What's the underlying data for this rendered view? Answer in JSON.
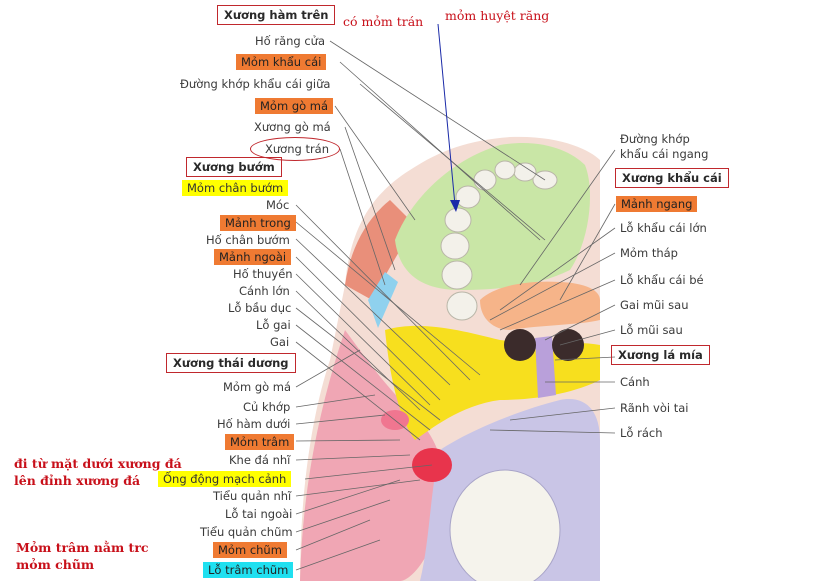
{
  "header": {
    "title": "Xương hàm trên",
    "note_co_mom_tran": "có mỏm trán",
    "note_mom_huyet_rang": "mỏm huyệt răng"
  },
  "left_labels": {
    "ho_rang_cua": "Hố răng cửa",
    "mom_khau_cai": "Mỏm khẩu cái",
    "duong_khop_giua": "Đường khớp khẩu cái giữa",
    "mom_go_ma": "Mỏm gò má",
    "xuong_go_ma": "Xương gò má",
    "xuong_tran": "Xương trán",
    "xuong_buom": "Xương bướm",
    "mom_chan_buom": "Mỏm chân bướm",
    "moc": "Móc",
    "manh_trong": "Mảnh trong",
    "ho_chan_buom": "Hố chân bướm",
    "manh_ngoai": "Mảnh ngoài",
    "ho_thuyen": "Hố thuyền",
    "canh_lon": "Cánh lớn",
    "lo_bau_duc": "Lỗ bầu dục",
    "lo_gai": "Lỗ gai",
    "gai": "Gai",
    "xuong_thai_duong": "Xương thái dương",
    "mom_go_ma_2": "Mỏm gò má",
    "cu_khop": "Củ khớp",
    "ho_ham_duoi": "Hố hàm dưới",
    "mom_tram": "Mỏm trâm",
    "khe_da_nhi": "Khe đá nhĩ",
    "ong_dong_mach_canh": "Ống động mạch cảnh",
    "tieu_quan_nhi": "Tiểu quản nhĩ",
    "lo_tai_ngoai": "Lỗ tai ngoài",
    "tieu_quan_chum": "Tiểu quản chũm",
    "mom_chum": "Mỏm chũm",
    "lo_tram_chum": "Lỗ trâm chũm"
  },
  "right_labels": {
    "duong_khop_ngang_1": "Đường khớp",
    "duong_khop_ngang_2": "khẩu cái ngang",
    "xuong_khau_cai": "Xương khẩu cái",
    "manh_ngang": "Mảnh ngang",
    "lo_khau_cai_lon": "Lỗ khẩu cái lớn",
    "mom_thap": "Mỏm tháp",
    "lo_khau_cai_be": "Lỗ khẩu cái bé",
    "gai_mui_sau": "Gai mũi sau",
    "lo_mui_sau": "Lỗ mũi sau",
    "xuong_la_mia": "Xương lá mía",
    "canh": "Cánh",
    "ranh_voi_tai": "Rãnh vòi tai",
    "lo_rach": "Lỗ rách"
  },
  "notes": {
    "note1_line1": "đi từ mặt dưới xương đá",
    "note1_line2": "lên đỉnh xương đá",
    "note2_line1": "Mỏm trâm nằm trc",
    "note2_line2": "mỏm chũm"
  },
  "colors": {
    "highlight_orange": "#ef7a32",
    "highlight_yellow": "#ffff00",
    "highlight_cyan": "#1fe0f0",
    "annotation_red": "#c8101a",
    "maxilla_green": "#c9e6a6",
    "palatine_orange": "#f6b489",
    "sphenoid_yellow": "#f7df1e",
    "temporal_pink": "#f0a6b4",
    "occipital_lavender": "#c9c5e6",
    "vomer_purple": "#b9a0da"
  }
}
